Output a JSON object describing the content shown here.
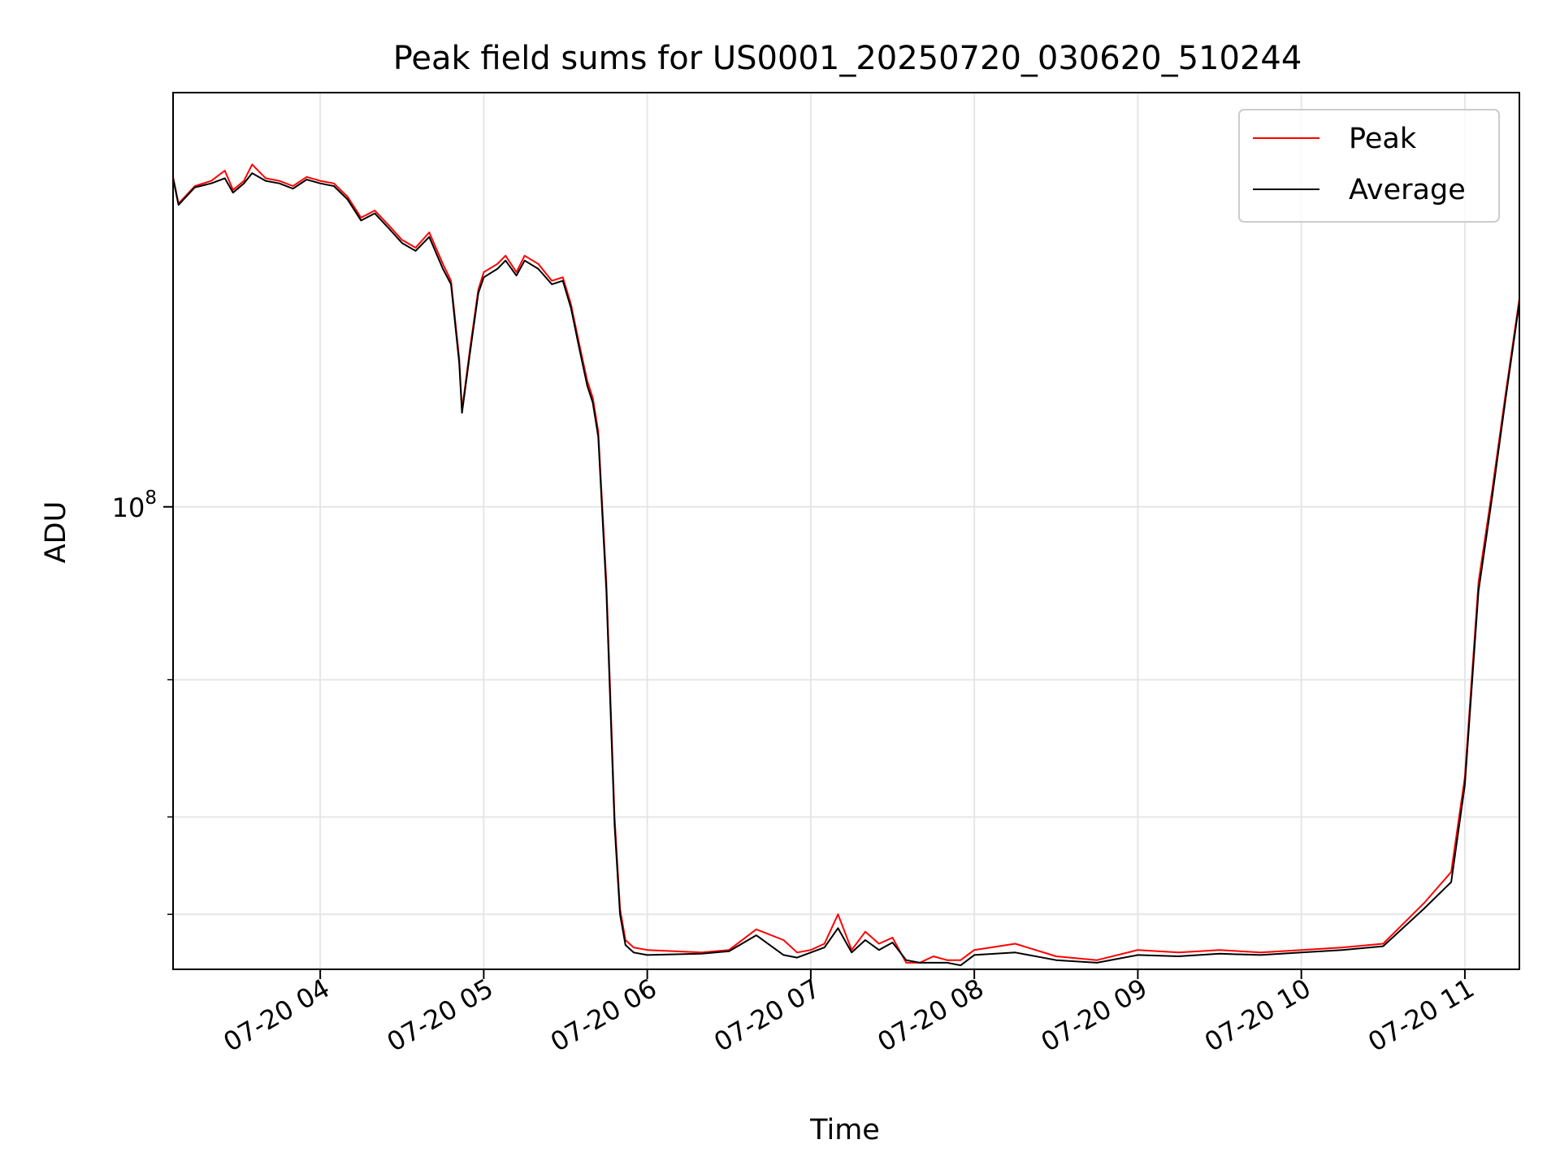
{
  "chart_data": {
    "type": "line",
    "title": "Peak field sums for US0001_20250720_030620_510244",
    "xlabel": "Time",
    "ylabel": "ADU",
    "y_scale": "log",
    "x_tick_labels": [
      "07-20 04",
      "07-20 05",
      "07-20 06",
      "07-20 07",
      "07-20 08",
      "07-20 09",
      "07-20 10",
      "07-20 11"
    ],
    "y_tick_labels": [
      {
        "base": "10",
        "exp": "8"
      }
    ],
    "grid": true,
    "legend_position": "top-right",
    "xlim": [
      "2025-07-20T03:06",
      "2025-07-20T11:20"
    ],
    "ylim": [
      25500000.0,
      340000000.0
    ],
    "colors": {
      "peak": "#ff0000",
      "average": "#000000"
    },
    "series": [
      {
        "name": "Peak",
        "color": "#ff0000",
        "x": [
          "03:06",
          "03:08",
          "03:14",
          "03:20",
          "03:25",
          "03:28",
          "03:32",
          "03:35",
          "03:40",
          "03:45",
          "03:50",
          "03:55",
          "04:00",
          "04:05",
          "04:10",
          "04:15",
          "04:20",
          "04:25",
          "04:30",
          "04:35",
          "04:40",
          "04:45",
          "04:48",
          "04:51",
          "04:52",
          "04:55",
          "04:58",
          "05:00",
          "05:05",
          "05:08",
          "05:12",
          "05:15",
          "05:20",
          "05:25",
          "05:29",
          "05:32",
          "05:35",
          "05:38",
          "05:40",
          "05:42",
          "05:45",
          "05:48",
          "05:50",
          "05:52",
          "05:55",
          "06:00",
          "06:20",
          "06:30",
          "06:40",
          "06:50",
          "06:55",
          "07:00",
          "07:05",
          "07:10",
          "07:15",
          "07:20",
          "07:25",
          "07:30",
          "07:35",
          "07:40",
          "07:45",
          "07:50",
          "07:55",
          "08:00",
          "08:15",
          "08:30",
          "08:45",
          "09:00",
          "09:15",
          "09:30",
          "09:45",
          "10:00",
          "10:15",
          "10:30",
          "10:45",
          "10:55",
          "11:00",
          "11:05",
          "11:10",
          "11:15",
          "11:20"
        ],
        "y": [
          265000000.0,
          245000000.0,
          258000000.0,
          262000000.0,
          270000000.0,
          255000000.0,
          262000000.0,
          275000000.0,
          264000000.0,
          262000000.0,
          258000000.0,
          265000000.0,
          262000000.0,
          260000000.0,
          250000000.0,
          235000000.0,
          240000000.0,
          230000000.0,
          220000000.0,
          215000000.0,
          225000000.0,
          205000000.0,
          195000000.0,
          155000000.0,
          133000000.0,
          160000000.0,
          190000000.0,
          200000000.0,
          205000000.0,
          210000000.0,
          200000000.0,
          210000000.0,
          205000000.0,
          195000000.0,
          197000000.0,
          182000000.0,
          162000000.0,
          145000000.0,
          138000000.0,
          125000000.0,
          80000000.0,
          40000000.0,
          30500000.0,
          27800000.0,
          27200000.0,
          27000000.0,
          26800000.0,
          27000000.0,
          28700000.0,
          27800000.0,
          26800000.0,
          27000000.0,
          27500000.0,
          30000000.0,
          27000000.0,
          28500000.0,
          27500000.0,
          28000000.0,
          26000000.0,
          26000000.0,
          26500000.0,
          26200000.0,
          26200000.0,
          27000000.0,
          27500000.0,
          26500000.0,
          26200000.0,
          27000000.0,
          26800000.0,
          27000000.0,
          26800000.0,
          27000000.0,
          27200000.0,
          27500000.0,
          31000000.0,
          34000000.0,
          45000000.0,
          80000000.0,
          105000000.0,
          140000000.0,
          185000000.0
        ]
      },
      {
        "name": "Average",
        "color": "#000000",
        "x": [
          "03:06",
          "03:08",
          "03:14",
          "03:20",
          "03:25",
          "03:28",
          "03:32",
          "03:35",
          "03:40",
          "03:45",
          "03:50",
          "03:55",
          "04:00",
          "04:05",
          "04:10",
          "04:15",
          "04:20",
          "04:25",
          "04:30",
          "04:35",
          "04:40",
          "04:45",
          "04:48",
          "04:51",
          "04:52",
          "04:55",
          "04:58",
          "05:00",
          "05:05",
          "05:08",
          "05:12",
          "05:15",
          "05:20",
          "05:25",
          "05:29",
          "05:32",
          "05:35",
          "05:38",
          "05:40",
          "05:42",
          "05:45",
          "05:48",
          "05:50",
          "05:52",
          "05:55",
          "06:00",
          "06:20",
          "06:30",
          "06:40",
          "06:50",
          "06:55",
          "07:00",
          "07:05",
          "07:10",
          "07:15",
          "07:20",
          "07:25",
          "07:30",
          "07:35",
          "07:40",
          "07:45",
          "07:50",
          "07:55",
          "08:00",
          "08:15",
          "08:30",
          "08:45",
          "09:00",
          "09:15",
          "09:30",
          "09:45",
          "10:00",
          "10:15",
          "10:30",
          "10:45",
          "10:55",
          "11:00",
          "11:05",
          "11:10",
          "11:15",
          "11:20"
        ],
        "y": [
          264000000.0,
          244000000.0,
          257000000.0,
          260000000.0,
          264000000.0,
          253000000.0,
          260000000.0,
          268000000.0,
          262000000.0,
          260000000.0,
          256000000.0,
          263000000.0,
          260000000.0,
          258000000.0,
          248000000.0,
          233000000.0,
          238000000.0,
          228000000.0,
          218000000.0,
          213000000.0,
          222000000.0,
          202000000.0,
          193000000.0,
          153000000.0,
          132000000.0,
          158000000.0,
          188000000.0,
          197000000.0,
          202000000.0,
          207000000.0,
          198000000.0,
          207000000.0,
          202000000.0,
          193000000.0,
          195000000.0,
          180000000.0,
          160000000.0,
          143000000.0,
          136000000.0,
          123000000.0,
          78000000.0,
          39000000.0,
          30000000.0,
          27400000.0,
          26800000.0,
          26600000.0,
          26700000.0,
          26900000.0,
          28200000.0,
          26600000.0,
          26400000.0,
          26800000.0,
          27200000.0,
          28800000.0,
          26800000.0,
          27800000.0,
          27000000.0,
          27600000.0,
          26200000.0,
          26000000.0,
          26000000.0,
          26000000.0,
          25800000.0,
          26600000.0,
          26800000.0,
          26200000.0,
          26000000.0,
          26600000.0,
          26500000.0,
          26700000.0,
          26600000.0,
          26800000.0,
          27000000.0,
          27300000.0,
          30500000.0,
          33000000.0,
          44000000.0,
          78000000.0,
          103000000.0,
          138000000.0,
          183000000.0
        ]
      }
    ]
  }
}
